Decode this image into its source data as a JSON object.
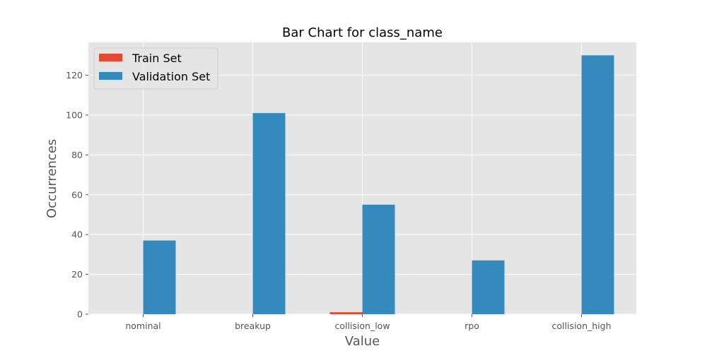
{
  "chart_data": {
    "type": "bar",
    "title": "Bar Chart for class_name",
    "xlabel": "Value",
    "ylabel": "Occurrences",
    "categories": [
      "nominal",
      "breakup",
      "collision_low",
      "rpo",
      "collision_high"
    ],
    "series": [
      {
        "name": "Train Set",
        "color": "#e24a33",
        "values": [
          0,
          0,
          1,
          0,
          0
        ]
      },
      {
        "name": "Validation Set",
        "color": "#348abd",
        "values": [
          37,
          101,
          55,
          27,
          130
        ]
      }
    ],
    "ylim": [
      0,
      136.5
    ],
    "yticks": [
      0,
      20,
      40,
      60,
      80,
      100,
      120
    ],
    "grid": true,
    "legend_position": "top-left"
  }
}
